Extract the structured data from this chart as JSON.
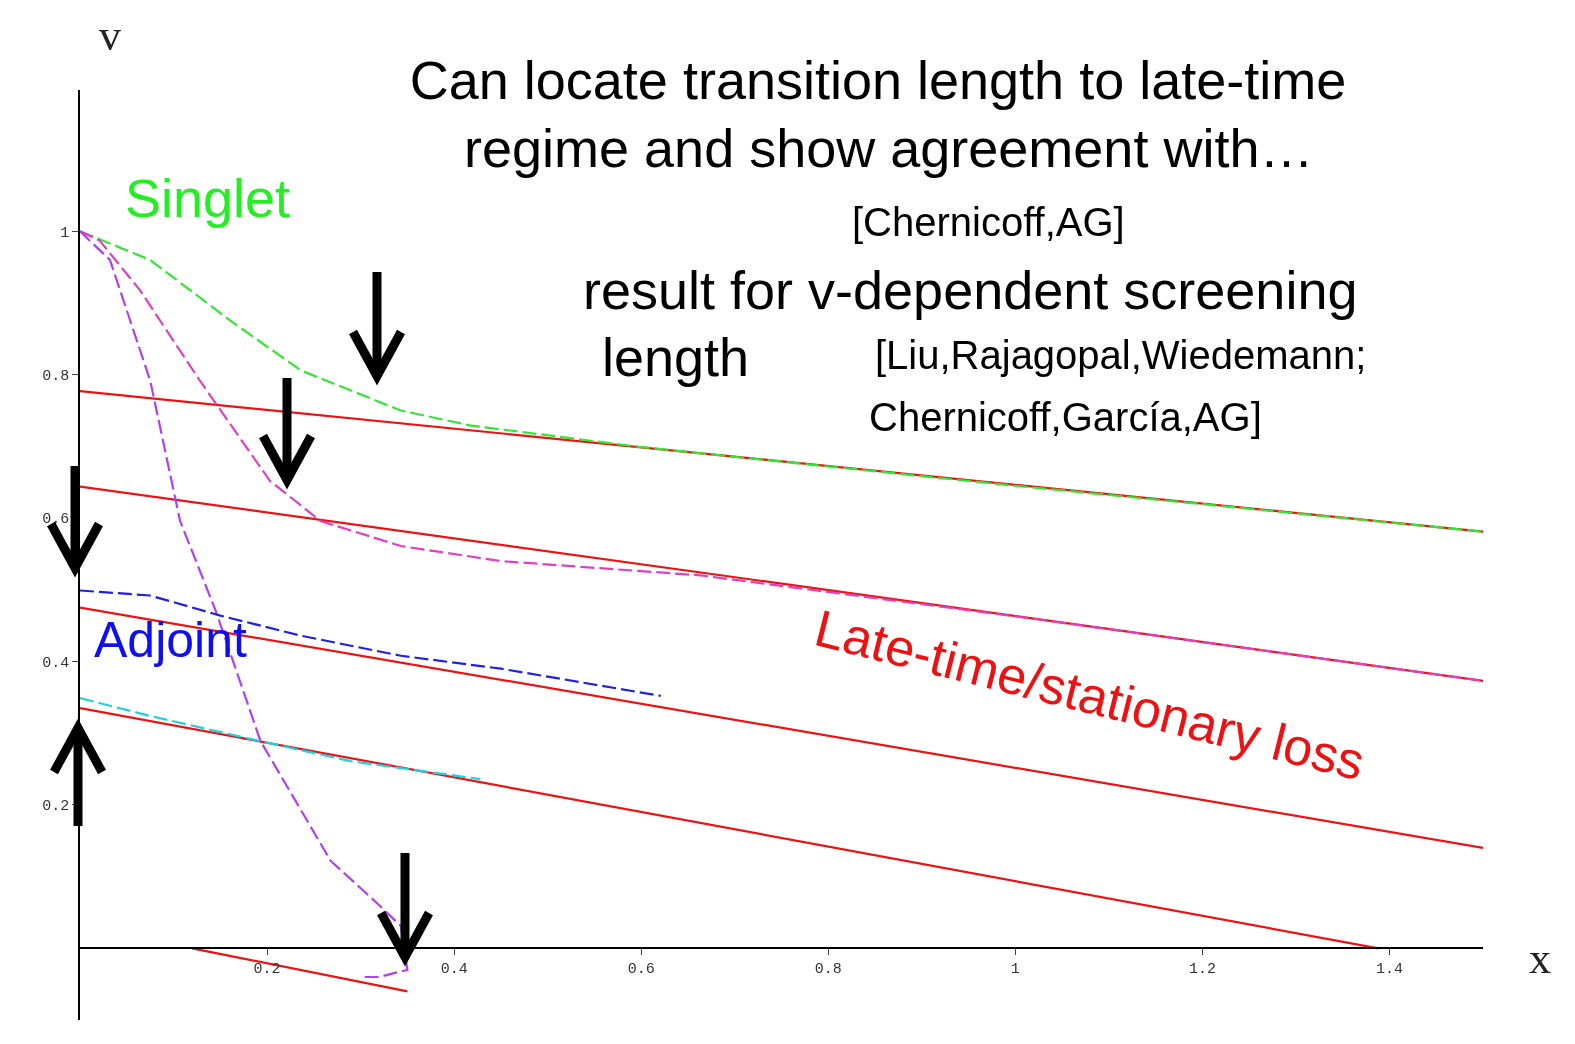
{
  "chart_data": {
    "type": "line",
    "title": "Can locate transition length to late-time",
    "subtitle": "regime and show agreement with…",
    "xlabel": "x",
    "ylabel": "v",
    "annotations": [
      "[Chernicoff,AG]",
      "result for v-dependent screening",
      "length",
      "[Liu,Rajagopal,Wiedemann;",
      "Chernicoff,García,AG]",
      "Singlet",
      "Adjoint",
      "Late-time/stationary loss"
    ],
    "xlim": [
      0,
      1.5
    ],
    "ylim": [
      -0.1,
      1.197
    ],
    "xticks": [
      0.2,
      0.4,
      0.6,
      0.8,
      1,
      1.2,
      1.4
    ],
    "yticks": [
      0.2,
      0.4,
      0.6,
      0.8,
      1
    ],
    "series": [
      {
        "color": "#ee1111",
        "line_style": "solid",
        "x": [
          0,
          1.5
        ],
        "values": [
          0.777,
          0.581
        ]
      },
      {
        "color": "#ee1111",
        "line_style": "solid",
        "x": [
          0,
          1.5
        ],
        "values": [
          0.644,
          0.373
        ]
      },
      {
        "color": "#ee1111",
        "line_style": "solid",
        "x": [
          0,
          1.5
        ],
        "values": [
          0.475,
          0.14
        ]
      },
      {
        "color": "#ee1111",
        "line_style": "solid",
        "x": [
          0,
          1.388
        ],
        "values": [
          0.335,
          0
        ]
      },
      {
        "color": "#ee1111",
        "line_style": "solid",
        "x": [
          0.12,
          0.35
        ],
        "values": [
          0,
          -0.06
        ]
      },
      {
        "color": "#33e633",
        "line_style": "dashed",
        "x": [
          0,
          0.075,
          0.16,
          0.236,
          0.343,
          0.418,
          0.6,
          1,
          1.5
        ],
        "values": [
          1,
          0.96,
          0.876,
          0.806,
          0.75,
          0.729,
          0.699,
          0.645,
          0.581
        ]
      },
      {
        "color": "#e040c0",
        "line_style": "dashed",
        "x": [
          0,
          0.021,
          0.064,
          0.128,
          0.203,
          0.257,
          0.343,
          0.45,
          0.664,
          1,
          1.5
        ],
        "values": [
          1,
          0.987,
          0.918,
          0.792,
          0.652,
          0.596,
          0.561,
          0.54,
          0.52,
          0.463,
          0.373
        ]
      },
      {
        "color": "#b040f0",
        "line_style": "dashed",
        "x": [
          0,
          0.032,
          0.075,
          0.107,
          0.145,
          0.193,
          0.268,
          0.32,
          0.343,
          0.35,
          0.32,
          0.3
        ],
        "values": [
          1,
          0.96,
          0.792,
          0.596,
          0.471,
          0.289,
          0.122,
          0.06,
          0.031,
          -0.03,
          -0.04,
          -0.04
        ]
      },
      {
        "color": "#2020e0",
        "line_style": "dashed",
        "x": [
          0,
          0.075,
          0.15,
          0.236,
          0.343,
          0.45,
          0.621
        ],
        "values": [
          0.499,
          0.492,
          0.464,
          0.436,
          0.408,
          0.39,
          0.352
        ]
      },
      {
        "color": "#20d0e0",
        "line_style": "dashed",
        "x": [
          0,
          0.075,
          0.182,
          0.289,
          0.428
        ],
        "values": [
          0.349,
          0.324,
          0.292,
          0.261,
          0.236
        ]
      }
    ]
  }
}
